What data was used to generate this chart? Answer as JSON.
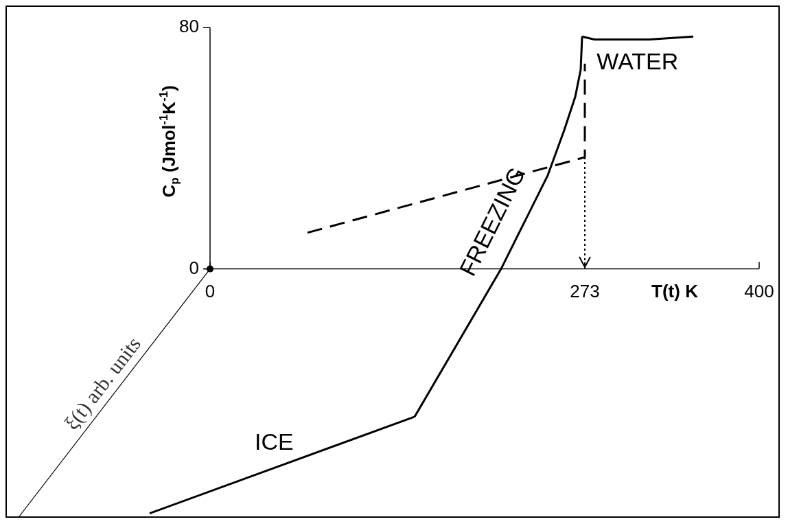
{
  "chart_data": {
    "type": "line",
    "xlabel": "T(t) K",
    "ylabel": "C$_{p}$ (Jmol$^{-1}$K$^{-1}$)",
    "xlim": [
      -148,
      400
    ],
    "ylim": [
      -82,
      80
    ],
    "xticks": [
      0,
      273,
      400
    ],
    "yticks": [
      0,
      80
    ],
    "series": [
      {
        "name": "ICE",
        "color": "#000000",
        "line_style": "solid",
        "x": [
          -44,
          149
        ],
        "values": [
          -81,
          -49
        ]
      },
      {
        "name": "FREEZING",
        "color": "#000000",
        "line_style": "solid",
        "x": [
          149,
          212,
          246,
          258,
          266,
          270,
          271
        ],
        "values": [
          -49,
          0,
          31,
          46,
          57,
          66,
          77
        ]
      },
      {
        "name": "WATER",
        "color": "#000000",
        "line_style": "solid",
        "x": [
          271,
          280,
          320,
          352
        ],
        "values": [
          77,
          76,
          76,
          77
        ]
      },
      {
        "color": "#000000",
        "line_style": "dashed",
        "x": [
          71,
          273,
          273
        ],
        "values": [
          12,
          37,
          68
        ]
      }
    ],
    "ref_lines": [
      {
        "axis": "x",
        "value": 273,
        "line_style": "dotted",
        "color": "#000000"
      }
    ],
    "annotations": [
      "ξ(t) arb. units"
    ]
  }
}
